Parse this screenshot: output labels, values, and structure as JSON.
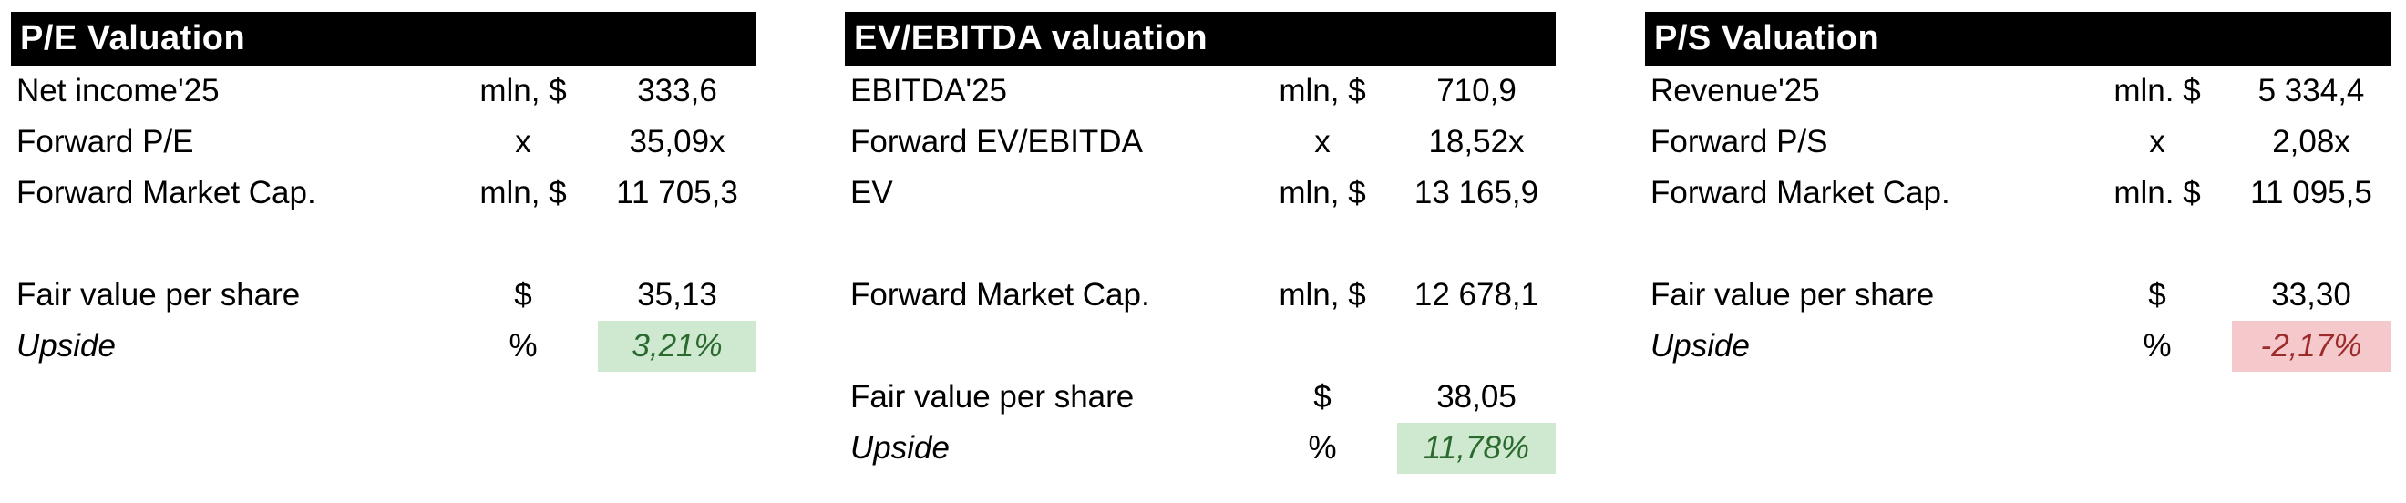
{
  "colors": {
    "header_bg": "#000000",
    "header_text": "#ffffff",
    "body_text": "#000000",
    "positive_bg": "#cfe9d1",
    "positive_text": "#2b6a2f",
    "negative_bg": "#f5c9cb",
    "negative_text": "#9c2b2b"
  },
  "chart_data": [
    {
      "type": "table",
      "title": "P/E Valuation",
      "rows": [
        {
          "label": "Net income'25",
          "unit": "mln, $",
          "value": "333,6",
          "style": "normal"
        },
        {
          "label": "Forward P/E",
          "unit": "x",
          "value": "35,09x",
          "style": "normal"
        },
        {
          "label": "Forward Market Cap.",
          "unit": "mln, $",
          "value": "11 705,3",
          "style": "normal"
        },
        {
          "label": "",
          "unit": "",
          "value": "",
          "style": "spacer"
        },
        {
          "label": "Fair value per share",
          "unit": "$",
          "value": "35,13",
          "style": "normal"
        },
        {
          "label": "Upside",
          "unit": "%",
          "value": "3,21%",
          "style": "positive"
        }
      ]
    },
    {
      "type": "table",
      "title": "EV/EBITDA valuation",
      "rows": [
        {
          "label": "EBITDA'25",
          "unit": "mln, $",
          "value": "710,9",
          "style": "normal"
        },
        {
          "label": "Forward EV/EBITDA",
          "unit": "x",
          "value": "18,52x",
          "style": "normal"
        },
        {
          "label": "EV",
          "unit": "mln, $",
          "value": "13 165,9",
          "style": "normal"
        },
        {
          "label": "",
          "unit": "",
          "value": "",
          "style": "spacer"
        },
        {
          "label": "Forward Market Cap.",
          "unit": "mln, $",
          "value": "12 678,1",
          "style": "normal"
        },
        {
          "label": "",
          "unit": "",
          "value": "",
          "style": "spacer"
        },
        {
          "label": "Fair value per share",
          "unit": "$",
          "value": "38,05",
          "style": "normal"
        },
        {
          "label": "Upside",
          "unit": "%",
          "value": "11,78%",
          "style": "positive"
        }
      ]
    },
    {
      "type": "table",
      "title": "P/S Valuation",
      "rows": [
        {
          "label": "Revenue'25",
          "unit": "mln. $",
          "value": "5 334,4",
          "style": "normal"
        },
        {
          "label": "Forward P/S",
          "unit": "x",
          "value": "2,08x",
          "style": "normal"
        },
        {
          "label": "Forward Market Cap.",
          "unit": "mln. $",
          "value": "11 095,5",
          "style": "normal"
        },
        {
          "label": "",
          "unit": "",
          "value": "",
          "style": "spacer"
        },
        {
          "label": "Fair value per share",
          "unit": "$",
          "value": "33,30",
          "style": "normal"
        },
        {
          "label": "Upside",
          "unit": "%",
          "value": "-2,17%",
          "style": "negative"
        }
      ]
    }
  ]
}
